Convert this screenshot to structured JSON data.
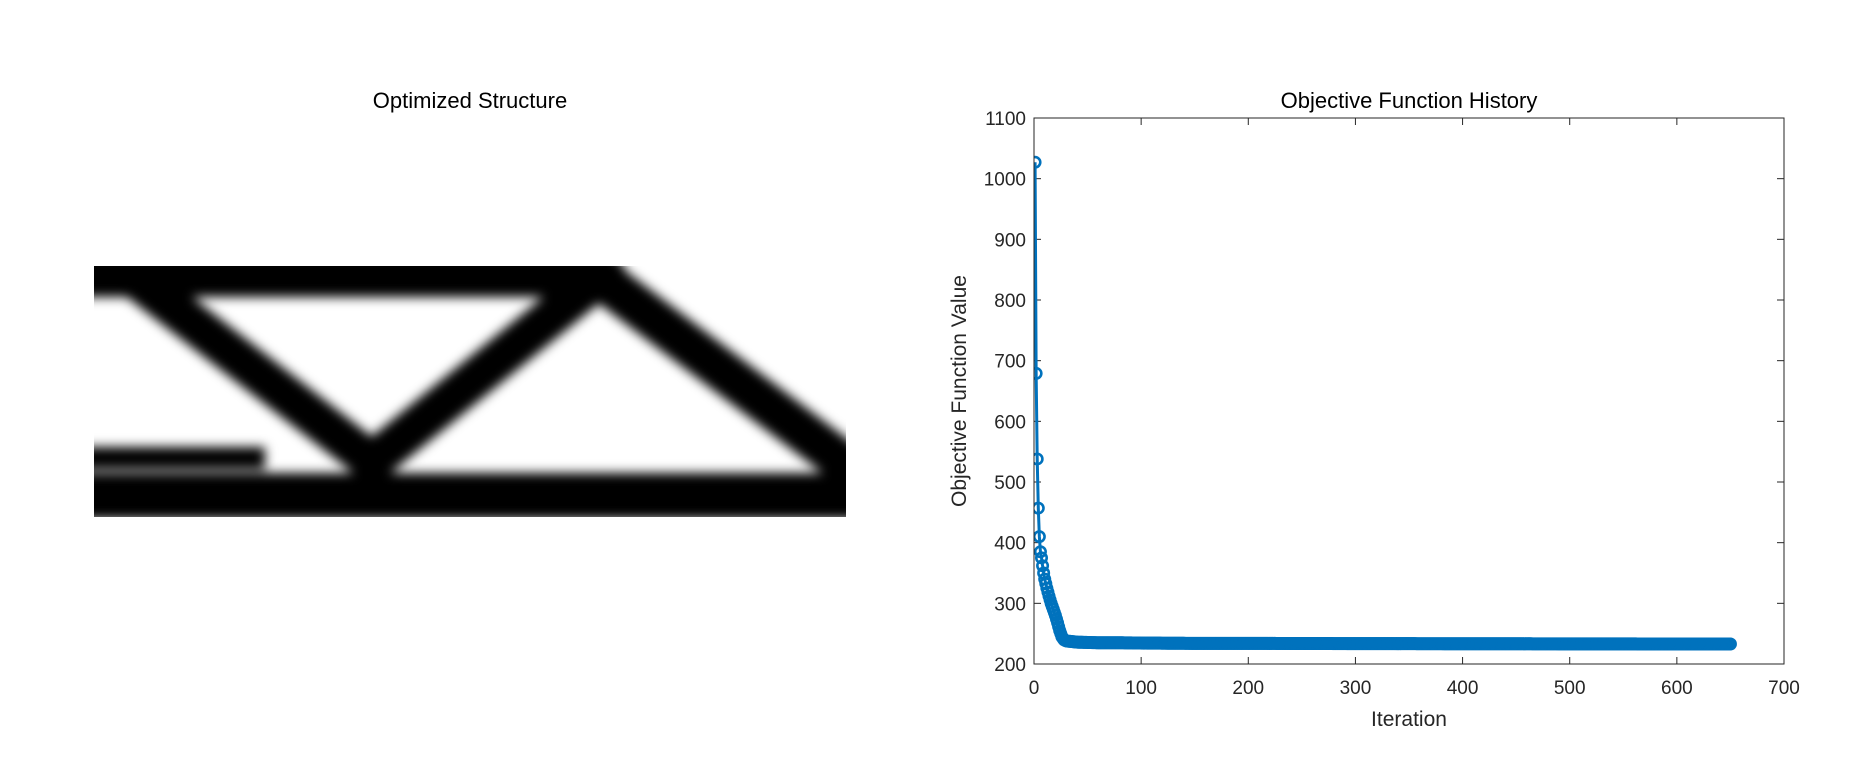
{
  "left_panel": {
    "title": "Optimized Structure"
  },
  "chart_data": {
    "type": "line",
    "title": "Objective Function History",
    "xlabel": "Iteration",
    "ylabel": "Objective Function Value",
    "xlim": [
      0,
      700
    ],
    "ylim": [
      200,
      1100
    ],
    "xticks": [
      0,
      100,
      200,
      300,
      400,
      500,
      600,
      700
    ],
    "yticks": [
      200,
      300,
      400,
      500,
      600,
      700,
      800,
      900,
      1000,
      1100
    ],
    "marker": "circle",
    "color": "#0072BD",
    "grid": false,
    "series": [
      {
        "x": [
          1,
          2,
          3,
          4,
          5,
          6,
          7,
          8,
          9,
          10,
          12,
          14,
          16,
          18,
          20,
          22,
          24,
          26,
          28,
          30,
          35,
          40,
          50,
          60,
          80,
          100,
          150,
          200,
          250,
          300,
          350,
          400,
          450,
          500,
          550,
          600,
          650
        ],
        "y": [
          1027,
          679,
          538,
          457,
          410,
          385,
          375,
          362,
          350,
          340,
          325,
          312,
          300,
          290,
          280,
          268,
          255,
          245,
          240,
          238,
          237,
          236,
          235.5,
          235,
          235,
          234.5,
          234,
          234,
          233.8,
          233.6,
          233.5,
          233.4,
          233.3,
          233.2,
          233.1,
          233,
          233
        ]
      }
    ]
  }
}
